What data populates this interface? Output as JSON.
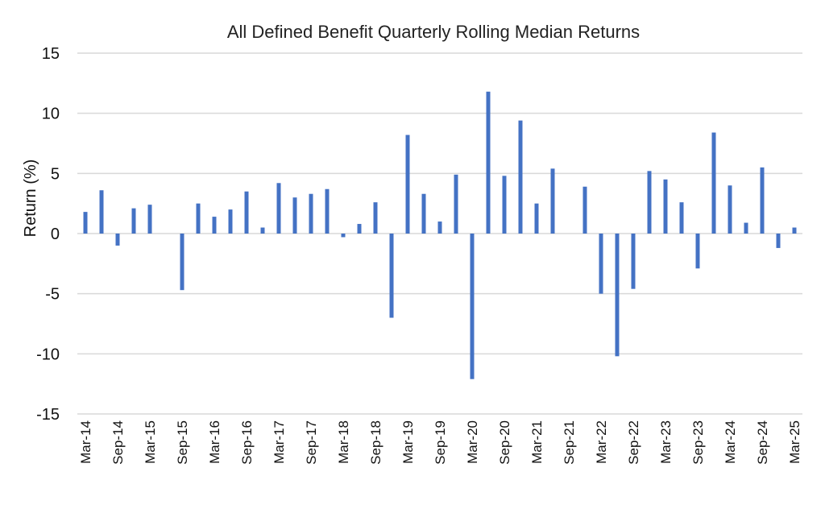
{
  "chart_data": {
    "type": "bar",
    "title": "All Defined Benefit Quarterly Rolling Median Returns",
    "xlabel": "",
    "ylabel": "Return (%)",
    "ylim": [
      -15,
      15
    ],
    "yticks": [
      15,
      10,
      5,
      0,
      -5,
      -10,
      -15
    ],
    "grid": true,
    "legend": "none",
    "bar_color": "#4472C4",
    "gridline_color": "#D9D9D9",
    "categories": [
      "Mar-14",
      "Jun-14",
      "Sep-14",
      "Dec-14",
      "Mar-15",
      "Jun-15",
      "Sep-15",
      "Dec-15",
      "Mar-16",
      "Jun-16",
      "Sep-16",
      "Dec-16",
      "Mar-17",
      "Jun-17",
      "Sep-17",
      "Dec-17",
      "Mar-18",
      "Jun-18",
      "Sep-18",
      "Dec-18",
      "Mar-19",
      "Jun-19",
      "Sep-19",
      "Dec-19",
      "Mar-20",
      "Jun-20",
      "Sep-20",
      "Dec-20",
      "Mar-21",
      "Jun-21",
      "Sep-21",
      "Dec-21",
      "Mar-22",
      "Jun-22",
      "Sep-22",
      "Dec-22",
      "Mar-23",
      "Jun-23",
      "Sep-23",
      "Dec-23",
      "Mar-24",
      "Jun-24",
      "Sep-24",
      "Dec-24",
      "Mar-25"
    ],
    "tick_labels": [
      "Mar-14",
      "Sep-14",
      "Mar-15",
      "Sep-15",
      "Mar-16",
      "Sep-16",
      "Mar-17",
      "Sep-17",
      "Mar-18",
      "Sep-18",
      "Mar-19",
      "Sep-19",
      "Mar-20",
      "Sep-20",
      "Mar-21",
      "Sep-21",
      "Mar-22",
      "Sep-22",
      "Mar-23",
      "Sep-23",
      "Mar-24",
      "Sep-24",
      "Mar-25"
    ],
    "values": [
      1.8,
      3.6,
      -1.0,
      2.1,
      2.4,
      0.0,
      -4.7,
      2.5,
      1.4,
      2.0,
      3.5,
      0.5,
      4.2,
      3.0,
      3.3,
      3.7,
      -0.3,
      0.8,
      2.6,
      -7.0,
      8.2,
      3.3,
      1.0,
      4.9,
      -12.1,
      11.8,
      4.8,
      9.4,
      2.5,
      5.4,
      0.0,
      3.9,
      -5.0,
      -10.2,
      -4.6,
      5.2,
      4.5,
      2.6,
      -2.9,
      8.4,
      4.0,
      0.9,
      5.5,
      -1.2,
      0.5
    ]
  }
}
